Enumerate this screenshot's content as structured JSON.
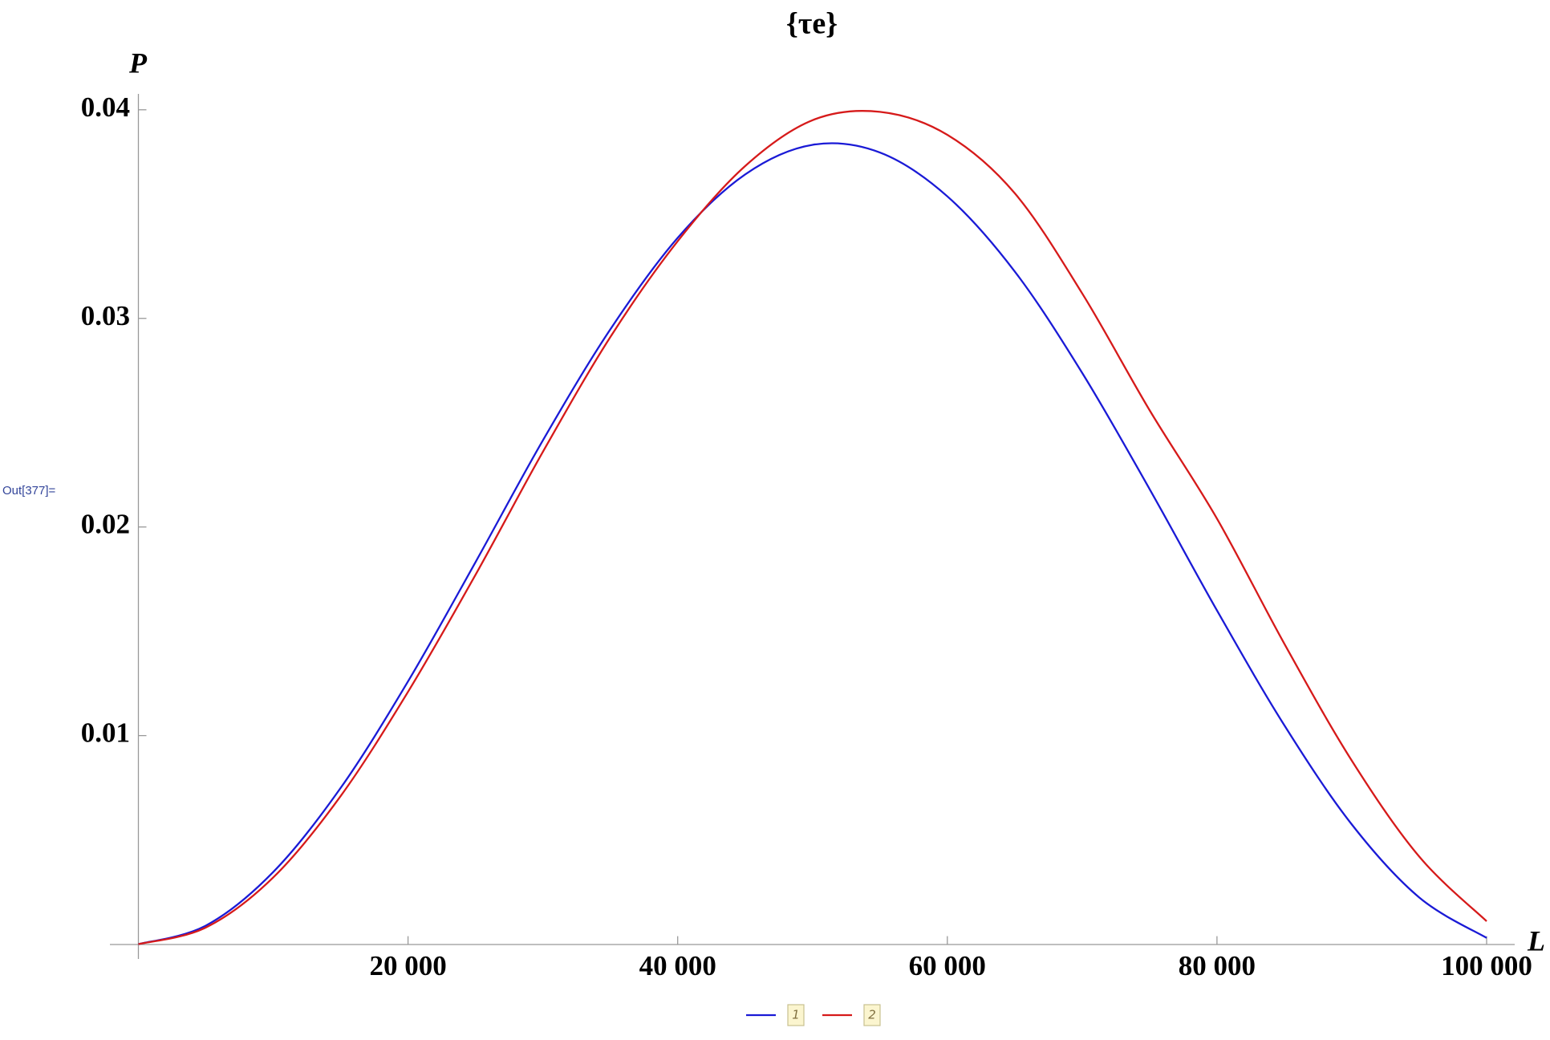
{
  "cell_label": "Out[377]=",
  "chart_data": {
    "type": "line",
    "title": "{τe}",
    "x_label": "L",
    "y_label": "P",
    "x": [
      0,
      5000,
      10000,
      15000,
      20000,
      25000,
      30000,
      35000,
      40000,
      45000,
      50000,
      55000,
      60000,
      65000,
      70000,
      75000,
      80000,
      85000,
      90000,
      95000,
      100000
    ],
    "series": [
      {
        "name": "1",
        "color": "#1a1ad6",
        "values": [
          0,
          0.00089,
          0.00346,
          0.00749,
          0.0126,
          0.01831,
          0.02415,
          0.02947,
          0.03386,
          0.0369,
          0.03832,
          0.03795,
          0.03585,
          0.03225,
          0.02739,
          0.02182,
          0.016,
          0.01049,
          0.00574,
          0.00224,
          0.0003
        ]
      },
      {
        "name": "2",
        "color": "#d61a1a",
        "values": [
          0,
          0.0008,
          0.0032,
          0.0071,
          0.0121,
          0.0177,
          0.0236,
          0.0291,
          0.0337,
          0.0373,
          0.0395,
          0.0399,
          0.0388,
          0.036,
          0.0312,
          0.0256,
          0.0204,
          0.0144,
          0.0088,
          0.0042,
          0.0011
        ]
      }
    ],
    "xlim": [
      0,
      100000
    ],
    "ylim": [
      0,
      0.04
    ],
    "xticks": [
      {
        "value": 20000,
        "label": "20 000"
      },
      {
        "value": 40000,
        "label": "40 000"
      },
      {
        "value": 60000,
        "label": "60 000"
      },
      {
        "value": 80000,
        "label": "80 000"
      },
      {
        "value": 100000,
        "label": "100 000"
      }
    ],
    "yticks": [
      0.01,
      0.02,
      0.03,
      0.04
    ],
    "legend": "bottom"
  }
}
